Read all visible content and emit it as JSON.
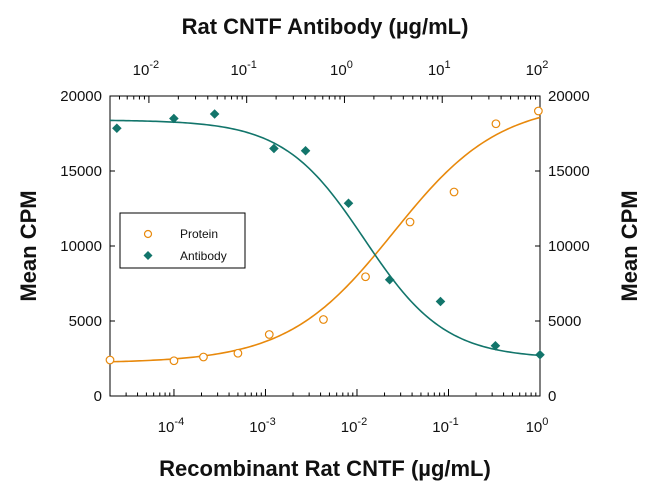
{
  "chart_data": {
    "type": "scatter",
    "title_top": "Rat CNTF Antibody (µg/mL)",
    "xlabel": "Recombinant Rat CNTF (µg/mL)",
    "ylabel_left": "Mean CPM",
    "ylabel_right": "Mean CPM",
    "x_scale": "log",
    "x_bottom_range": [
      2e-05,
      1
    ],
    "x_top_range": [
      0.004,
      100
    ],
    "ylim": [
      0,
      20000
    ],
    "y_ticks": [
      "0",
      "5000",
      "10000",
      "15000",
      "20000"
    ],
    "x_bottom_ticks": [
      {
        "base": "10",
        "exp": "-4",
        "value": 0.0001
      },
      {
        "base": "10",
        "exp": "-3",
        "value": 0.001
      },
      {
        "base": "10",
        "exp": "-2",
        "value": 0.01
      },
      {
        "base": "10",
        "exp": "-1",
        "value": 0.1
      },
      {
        "base": "10",
        "exp": "0",
        "value": 1
      }
    ],
    "x_top_ticks": [
      {
        "base": "10",
        "exp": "-2",
        "value": 0.01
      },
      {
        "base": "10",
        "exp": "-1",
        "value": 0.1
      },
      {
        "base": "10",
        "exp": "0",
        "value": 1
      },
      {
        "base": "10",
        "exp": "1",
        "value": 10
      },
      {
        "base": "10",
        "exp": "2",
        "value": 100
      }
    ],
    "legend": {
      "position": "center-left"
    },
    "series": [
      {
        "name": "Protein",
        "axis": "bottom",
        "marker": "circle-open",
        "color": "#e8890c",
        "x": [
          2e-05,
          0.0001,
          0.00021,
          0.0005,
          0.0011,
          0.0043,
          0.0124,
          0.038,
          0.115,
          0.33,
          0.96
        ],
        "y": [
          2400,
          2350,
          2600,
          2850,
          4100,
          5100,
          7950,
          11600,
          13600,
          18150,
          19000
        ],
        "fit": {
          "bottom": 2200,
          "top": 19600,
          "ec50": 0.025,
          "hill": 0.75
        }
      },
      {
        "name": "Antibody",
        "axis": "top",
        "marker": "diamond-filled",
        "color": "#12756b",
        "x": [
          0.0047,
          0.018,
          0.047,
          0.19,
          0.4,
          1.1,
          2.9,
          9.6,
          35,
          100
        ],
        "y": [
          17850,
          18500,
          18800,
          16500,
          16350,
          12850,
          7750,
          6300,
          3350,
          2750
        ],
        "fit": {
          "bottom": 2500,
          "top": 18400,
          "ec50": 1.6,
          "hill": 1.05
        }
      }
    ]
  }
}
